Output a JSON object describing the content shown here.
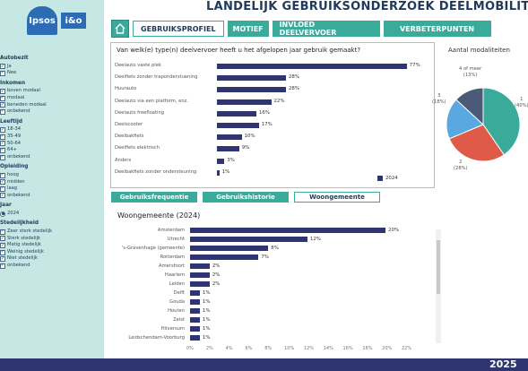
{
  "header": {
    "title": "LANDELIJK GEBRUIKSONDERZOEK DEELMOBILITEIT",
    "logo_ipsos": "Ipsos",
    "logo_io": "i&o"
  },
  "tabs": [
    {
      "label": "GEBRUIKSPROFIEL",
      "active": true
    },
    {
      "label": "MOTIEF",
      "active": false
    },
    {
      "label": "INVLOED DEELVERVOER",
      "active": false
    },
    {
      "label": "VERBETERPUNTEN",
      "active": false
    }
  ],
  "filters": {
    "autobezit": {
      "title": "Autobezit",
      "items": [
        "Ja",
        "Nee"
      ]
    },
    "inkomen": {
      "title": "Inkomen",
      "items": [
        "boven modaal",
        "modaal",
        "beneden modaal",
        "onbekend"
      ]
    },
    "leeftijd": {
      "title": "Leeftijd",
      "items": [
        "18-34",
        "35-49",
        "50-64",
        "64+",
        "onbekend"
      ]
    },
    "opleiding": {
      "title": "Opleiding",
      "items": [
        "hoog",
        "midden",
        "laag",
        "onbekend"
      ]
    },
    "jaar": {
      "title": "Jaar",
      "items": [
        "2024"
      ]
    },
    "stedelijkheid": {
      "title": "Stedelijkheid",
      "items": [
        "Zeer sterk stedelijk",
        "Sterk stedelijk",
        "Matig stedelijk",
        "Weinig stedelijk",
        "Niet stedelijk",
        "onbekend"
      ]
    }
  },
  "chart_data": [
    {
      "type": "bar",
      "title": "Van welk(e) type(n) deelvervoer heeft u het afgelopen jaar gebruik gemaakt?",
      "categories": [
        "Deelauto vaste plek",
        "Deelfiets zonder traponderstuening",
        "Huurauto",
        "Deelauto via een platform, enz.",
        "Deelauto freefloating",
        "Deelscooter",
        "Deelbakfiets",
        "Deelfiets elektrisch",
        "Anders",
        "Deelbakfiets zonder ondersteuning"
      ],
      "series": [
        {
          "name": "2024",
          "values": [
            77,
            28,
            28,
            22,
            16,
            17,
            10,
            9,
            3,
            1
          ]
        }
      ],
      "value_labels": [
        "77%",
        "28%",
        "28%",
        "22%",
        "16%",
        "17%",
        "10%",
        "9%",
        "3%",
        "1%"
      ],
      "legend": "bottom-right"
    },
    {
      "type": "pie",
      "title": "Aantal modaliteiten",
      "categories": [
        "1",
        "2",
        "3",
        "4 of meer"
      ],
      "values": [
        40,
        28,
        18,
        13
      ],
      "value_labels": [
        "(40%)",
        "(28%)",
        "(18%)",
        "(13%)"
      ],
      "colors": [
        "#3aaa9a",
        "#e05a4a",
        "#5aa8e0",
        "#4a5a78"
      ]
    },
    {
      "type": "bar",
      "title": "Woongemeente (2024)",
      "categories": [
        "Amsterdam",
        "Utrecht",
        "'s-Gravenhage (gemeente)",
        "Rotterdam",
        "Amersfoort",
        "Haarlem",
        "Leiden",
        "Delft",
        "Gouda",
        "Houten",
        "Zeist",
        "Hilversum",
        "Leidschendam-Voorburg"
      ],
      "values": [
        20,
        12,
        8,
        7,
        2,
        2,
        2,
        1,
        1,
        1,
        1,
        1,
        1
      ],
      "value_labels": [
        "20%",
        "12%",
        "8%",
        "7%",
        "2%",
        "2%",
        "2%",
        "1%",
        "1%",
        "1%",
        "1%",
        "1%",
        "1%"
      ],
      "x_ticks": [
        "0%",
        "2%",
        "4%",
        "6%",
        "8%",
        "10%",
        "12%",
        "14%",
        "16%",
        "18%",
        "20%",
        "22%"
      ],
      "xlim": [
        0,
        22
      ]
    }
  ],
  "subtabs": [
    {
      "label": "Gebruiksfrequentie",
      "active": false
    },
    {
      "label": "Gebruikshistorie",
      "active": false
    },
    {
      "label": "Woongemeente",
      "active": true
    }
  ],
  "legend_label": "2024",
  "footer_year": "2025",
  "colors": {
    "accent": "#3aaa9a",
    "navy": "#2e3570",
    "sidebar": "#c5e8e4"
  }
}
